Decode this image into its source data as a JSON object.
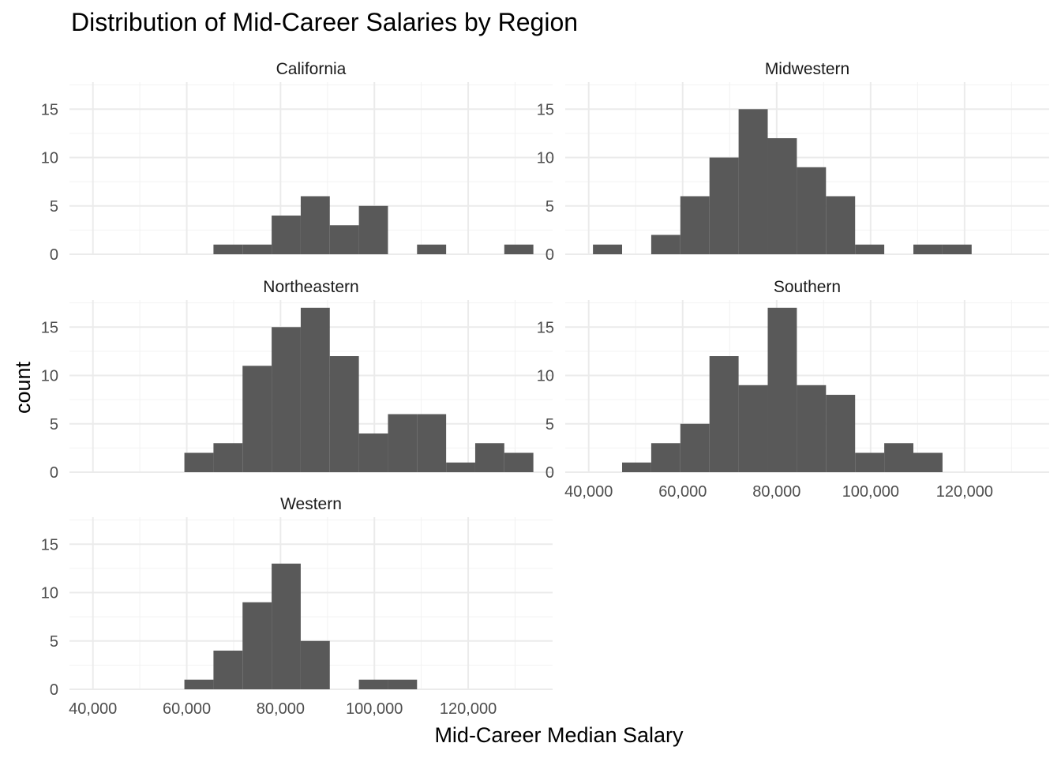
{
  "chart_data": {
    "type": "bar",
    "title": "Distribution of Mid-Career Salaries by Region",
    "xlabel": "Mid-Career Median Salary",
    "ylabel": "count",
    "xlim": [
      35000,
      138000
    ],
    "ylim": [
      0,
      17.8
    ],
    "bin_width": 6200,
    "x_ticks": [
      40000,
      60000,
      80000,
      100000,
      120000
    ],
    "x_tick_labels": [
      "40,000",
      "60,000",
      "80,000",
      "100,000",
      "120,000"
    ],
    "y_ticks": [
      0,
      5,
      10,
      15
    ],
    "y_tick_labels": [
      "0",
      "5",
      "10",
      "15"
    ],
    "grid": true,
    "bar_color": "#595959",
    "facets": [
      {
        "name": "California",
        "bins": [
          {
            "x0": 65700,
            "x1": 71900,
            "count": 1
          },
          {
            "x0": 71900,
            "x1": 78100,
            "count": 1
          },
          {
            "x0": 78100,
            "x1": 84300,
            "count": 4
          },
          {
            "x0": 84300,
            "x1": 90500,
            "count": 6
          },
          {
            "x0": 90500,
            "x1": 96700,
            "count": 3
          },
          {
            "x0": 96700,
            "x1": 102900,
            "count": 5
          },
          {
            "x0": 109100,
            "x1": 115300,
            "count": 1
          },
          {
            "x0": 127700,
            "x1": 133900,
            "count": 1
          }
        ]
      },
      {
        "name": "Midwestern",
        "bins": [
          {
            "x0": 40900,
            "x1": 47100,
            "count": 1
          },
          {
            "x0": 53300,
            "x1": 59500,
            "count": 2
          },
          {
            "x0": 59500,
            "x1": 65700,
            "count": 6
          },
          {
            "x0": 65700,
            "x1": 71900,
            "count": 10
          },
          {
            "x0": 71900,
            "x1": 78100,
            "count": 15
          },
          {
            "x0": 78100,
            "x1": 84300,
            "count": 12
          },
          {
            "x0": 84300,
            "x1": 90500,
            "count": 9
          },
          {
            "x0": 90500,
            "x1": 96700,
            "count": 6
          },
          {
            "x0": 96700,
            "x1": 102900,
            "count": 1
          },
          {
            "x0": 109100,
            "x1": 115300,
            "count": 1
          },
          {
            "x0": 115300,
            "x1": 121500,
            "count": 1
          }
        ]
      },
      {
        "name": "Northeastern",
        "bins": [
          {
            "x0": 59500,
            "x1": 65700,
            "count": 2
          },
          {
            "x0": 65700,
            "x1": 71900,
            "count": 3
          },
          {
            "x0": 71900,
            "x1": 78100,
            "count": 11
          },
          {
            "x0": 78100,
            "x1": 84300,
            "count": 15
          },
          {
            "x0": 84300,
            "x1": 90500,
            "count": 17
          },
          {
            "x0": 90500,
            "x1": 96700,
            "count": 12
          },
          {
            "x0": 96700,
            "x1": 102900,
            "count": 4
          },
          {
            "x0": 102900,
            "x1": 109100,
            "count": 6
          },
          {
            "x0": 109100,
            "x1": 115300,
            "count": 6
          },
          {
            "x0": 115300,
            "x1": 121500,
            "count": 1
          },
          {
            "x0": 121500,
            "x1": 127700,
            "count": 3
          },
          {
            "x0": 127700,
            "x1": 133900,
            "count": 2
          }
        ]
      },
      {
        "name": "Southern",
        "bins": [
          {
            "x0": 47100,
            "x1": 53300,
            "count": 1
          },
          {
            "x0": 53300,
            "x1": 59500,
            "count": 3
          },
          {
            "x0": 59500,
            "x1": 65700,
            "count": 5
          },
          {
            "x0": 65700,
            "x1": 71900,
            "count": 12
          },
          {
            "x0": 71900,
            "x1": 78100,
            "count": 9
          },
          {
            "x0": 78100,
            "x1": 84300,
            "count": 17
          },
          {
            "x0": 84300,
            "x1": 90500,
            "count": 9
          },
          {
            "x0": 90500,
            "x1": 96700,
            "count": 8
          },
          {
            "x0": 96700,
            "x1": 102900,
            "count": 2
          },
          {
            "x0": 102900,
            "x1": 109100,
            "count": 3
          },
          {
            "x0": 109100,
            "x1": 115300,
            "count": 2
          }
        ]
      },
      {
        "name": "Western",
        "bins": [
          {
            "x0": 59500,
            "x1": 65700,
            "count": 1
          },
          {
            "x0": 65700,
            "x1": 71900,
            "count": 4
          },
          {
            "x0": 71900,
            "x1": 78100,
            "count": 9
          },
          {
            "x0": 78100,
            "x1": 84300,
            "count": 13
          },
          {
            "x0": 84300,
            "x1": 90500,
            "count": 5
          },
          {
            "x0": 96700,
            "x1": 102900,
            "count": 1
          },
          {
            "x0": 102900,
            "x1": 109100,
            "count": 1
          }
        ]
      }
    ]
  }
}
